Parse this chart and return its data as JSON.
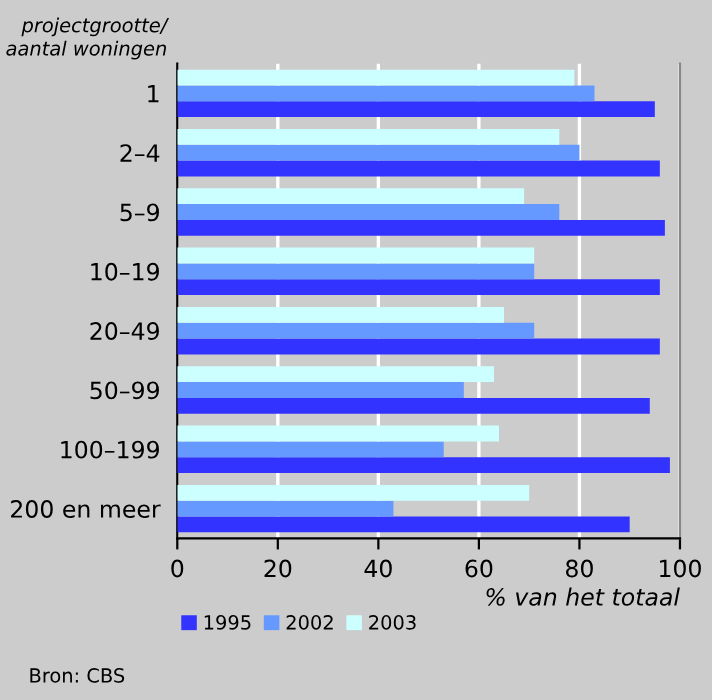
{
  "chart_data": {
    "type": "bar",
    "orientation": "horizontal",
    "ylabel": "projectgrootte/\naantal woningen",
    "xlabel": "% van het totaal",
    "categories": [
      "1",
      "2–4",
      "5–9",
      "10–19",
      "20–49",
      "50–99",
      "100–199",
      "200 en meer"
    ],
    "series": [
      {
        "name": "1995",
        "color": "#3333ff",
        "values": [
          95,
          96,
          97,
          96,
          96,
          94,
          98,
          90
        ]
      },
      {
        "name": "2002",
        "color": "#6699ff",
        "values": [
          83,
          80,
          76,
          71,
          71,
          57,
          53,
          43
        ]
      },
      {
        "name": "2003",
        "color": "#ccffff",
        "values": [
          79,
          76,
          69,
          71,
          65,
          63,
          64,
          70
        ]
      }
    ],
    "xlim": [
      0,
      100
    ],
    "xticks": [
      0,
      20,
      40,
      60,
      80,
      100
    ],
    "grid": "x",
    "legend": "bottom",
    "annotations": [
      "Bron: CBS"
    ]
  }
}
